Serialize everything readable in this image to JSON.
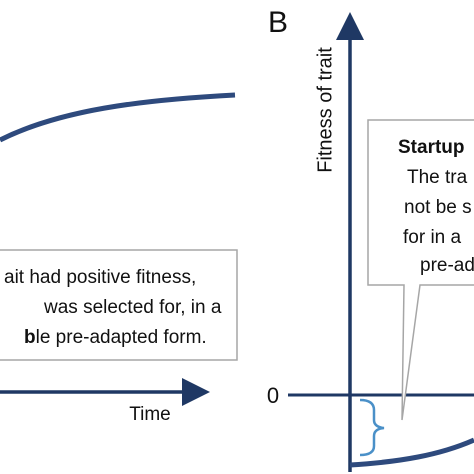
{
  "panel_a": {
    "box_lines": [
      "ait had positive fitness,",
      "was selected for, in a"
    ],
    "box_last_bold": "b",
    "box_last_rest": "le pre-adapted form.",
    "x_axis_label": "Time"
  },
  "panel_b": {
    "label": "B",
    "y_axis_label": "Fitness of trait",
    "zero_label": "0",
    "box_title": "Startup",
    "box_lines": [
      "The tra",
      "not be s",
      "for in a",
      "pre-ad"
    ]
  }
}
